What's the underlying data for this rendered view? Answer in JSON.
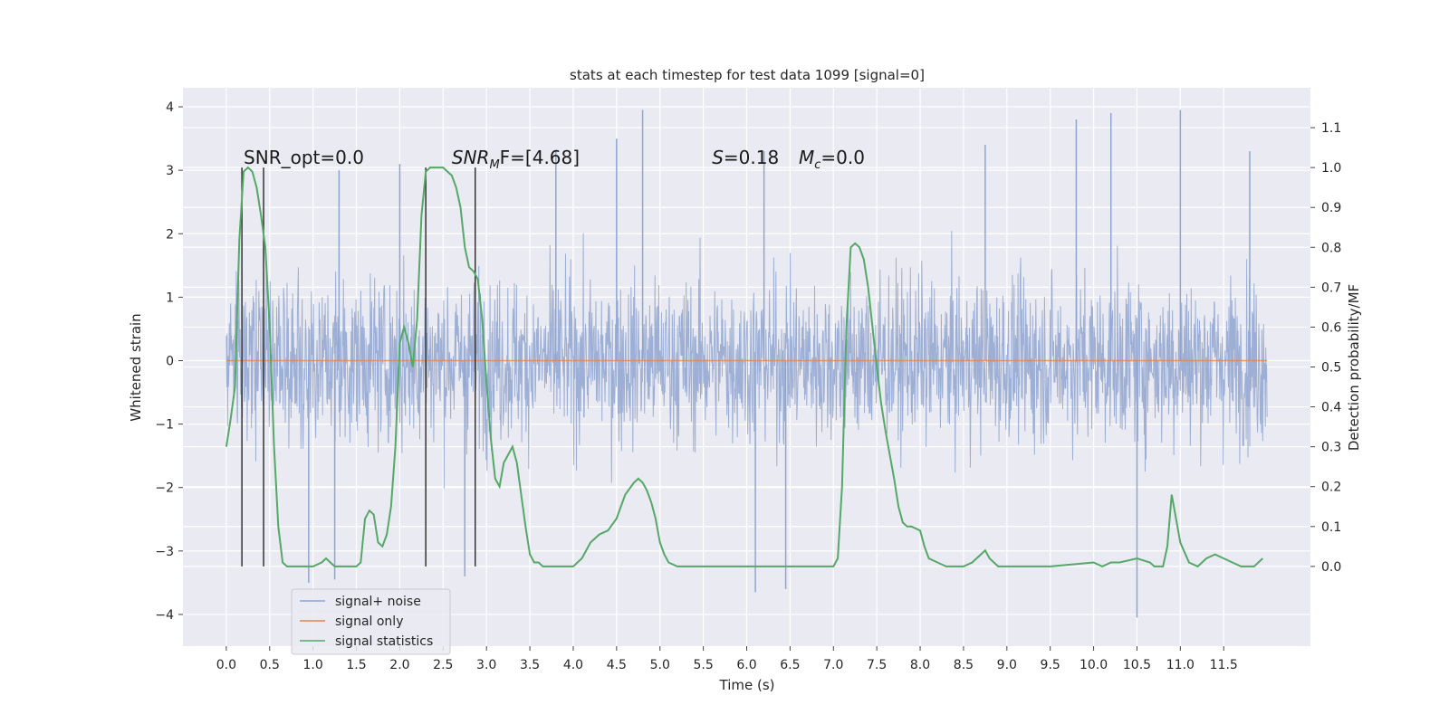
{
  "chart_data": {
    "type": "line",
    "title": "stats at each timestep for test data 1099 [signal=0]",
    "xlabel": "Time (s)",
    "ylabel": "Whitened strain",
    "ylabel_right": "Detection probability/MF",
    "xlim": [
      -0.5,
      12.5
    ],
    "ylim": [
      -4.5,
      4.3
    ],
    "ylim_right": [
      -0.2,
      1.2
    ],
    "x_ticks": [
      0.0,
      0.5,
      1.0,
      1.5,
      2.0,
      2.5,
      3.0,
      3.5,
      4.0,
      4.5,
      5.0,
      5.5,
      6.0,
      6.5,
      7.0,
      7.5,
      8.0,
      8.5,
      9.0,
      9.5,
      10.0,
      10.5,
      11.0,
      11.5
    ],
    "x_tick_labels": [
      "0.0",
      "0.5",
      "1.0",
      "1.5",
      "2.0",
      "2.5",
      "3.0",
      "3.5",
      "4.0",
      "4.5",
      "5.0",
      "5.5",
      "6.0",
      "6.5",
      "7.0",
      "7.5",
      "8.0",
      "8.5",
      "9.0",
      "9.5",
      "10.0",
      "10.5",
      "11.0",
      "11.5"
    ],
    "y_ticks": [
      -4,
      -3,
      -2,
      -1,
      0,
      1,
      2,
      3,
      4
    ],
    "y_tick_labels": [
      "−4",
      "−3",
      "−2",
      "−1",
      "0",
      "1",
      "2",
      "3",
      "4"
    ],
    "y_right_ticks": [
      0.0,
      0.1,
      0.2,
      0.3,
      0.4,
      0.5,
      0.6,
      0.7,
      0.8,
      0.9,
      1.0,
      1.1
    ],
    "y_right_tick_labels": [
      "0.0",
      "0.1",
      "0.2",
      "0.3",
      "0.4",
      "0.5",
      "0.6",
      "0.7",
      "0.8",
      "0.9",
      "1.0",
      "1.1"
    ],
    "grid": true,
    "legend_position": "lower-left",
    "annotations": [
      {
        "text": "SNR_opt=0.0",
        "x": 0.2,
        "y": 3.1
      },
      {
        "base": "SNR",
        "sub": "M",
        "rest": "F=[4.68]",
        "x": 2.6,
        "y": 3.1
      },
      {
        "base": "S",
        "rest": "=0.18",
        "x": 5.6,
        "y": 3.1
      },
      {
        "base": "M",
        "sub": "c",
        "rest": "=0.0",
        "x": 6.6,
        "y": 3.1
      }
    ],
    "vertical_lines": {
      "x": [
        0.18,
        0.43,
        2.3,
        2.87
      ],
      "y_range_right": [
        0.0,
        1.0
      ],
      "color": "#333333"
    },
    "series": [
      {
        "name": "signal+ noise",
        "color": "#8fa5d0",
        "axis": "left",
        "x_range": [
          0.0,
          12.0
        ],
        "envelope_upper_typical": 2.2,
        "envelope_lower_typical": -2.2,
        "peaks": [
          [
            4.8,
            3.95
          ],
          [
            11.0,
            3.95
          ],
          [
            10.5,
            -4.05
          ],
          [
            0.95,
            -3.5
          ],
          [
            6.45,
            -3.6
          ],
          [
            6.1,
            -3.65
          ],
          [
            2.75,
            -3.4
          ],
          [
            1.25,
            -3.45
          ],
          [
            9.8,
            3.8
          ],
          [
            10.2,
            3.9
          ],
          [
            1.3,
            3.0
          ],
          [
            3.8,
            3.3
          ],
          [
            6.2,
            3.3
          ],
          [
            8.75,
            3.4
          ],
          [
            11.8,
            3.3
          ],
          [
            2.0,
            3.1
          ],
          [
            4.5,
            3.5
          ]
        ]
      },
      {
        "name": "signal only",
        "color": "#dd8452",
        "axis": "left",
        "x": [
          0.0,
          12.0
        ],
        "y": [
          0.0,
          0.0
        ]
      },
      {
        "name": "signal statistics",
        "color": "#55a868",
        "axis": "right",
        "x": [
          0.0,
          0.05,
          0.1,
          0.15,
          0.2,
          0.25,
          0.3,
          0.35,
          0.4,
          0.45,
          0.5,
          0.55,
          0.6,
          0.65,
          0.7,
          0.8,
          0.9,
          1.0,
          1.1,
          1.15,
          1.2,
          1.25,
          1.3,
          1.35,
          1.4,
          1.45,
          1.5,
          1.55,
          1.6,
          1.65,
          1.7,
          1.75,
          1.8,
          1.85,
          1.9,
          1.95,
          2.0,
          2.05,
          2.1,
          2.15,
          2.2,
          2.25,
          2.3,
          2.35,
          2.4,
          2.45,
          2.5,
          2.55,
          2.6,
          2.65,
          2.7,
          2.75,
          2.8,
          2.85,
          2.9,
          2.95,
          3.0,
          3.05,
          3.1,
          3.15,
          3.2,
          3.25,
          3.3,
          3.35,
          3.4,
          3.45,
          3.5,
          3.55,
          3.6,
          3.65,
          3.7,
          3.75,
          3.8,
          3.9,
          4.0,
          4.1,
          4.2,
          4.3,
          4.4,
          4.5,
          4.6,
          4.7,
          4.75,
          4.8,
          4.85,
          4.9,
          4.95,
          5.0,
          5.05,
          5.1,
          5.2,
          5.3,
          5.5,
          6.0,
          6.3,
          6.5,
          6.7,
          6.9,
          7.0,
          7.05,
          7.1,
          7.15,
          7.2,
          7.25,
          7.3,
          7.35,
          7.4,
          7.45,
          7.5,
          7.55,
          7.6,
          7.65,
          7.7,
          7.75,
          7.8,
          7.85,
          7.9,
          8.0,
          8.05,
          8.1,
          8.2,
          8.3,
          8.4,
          8.5,
          8.6,
          8.7,
          8.75,
          8.8,
          8.9,
          9.0,
          9.5,
          10.0,
          10.1,
          10.2,
          10.3,
          10.5,
          10.65,
          10.7,
          10.75,
          10.8,
          10.85,
          10.9,
          11.0,
          11.1,
          11.2,
          11.25,
          11.3,
          11.4,
          11.5,
          11.6,
          11.7,
          11.8,
          11.85,
          11.9,
          11.95
        ],
        "y": [
          0.3,
          0.37,
          0.45,
          0.82,
          0.99,
          1.0,
          0.99,
          0.95,
          0.88,
          0.8,
          0.6,
          0.3,
          0.1,
          0.01,
          0.0,
          0.0,
          0.0,
          0.0,
          0.01,
          0.02,
          0.01,
          0.0,
          0.0,
          0.0,
          0.0,
          0.0,
          0.0,
          0.01,
          0.12,
          0.14,
          0.13,
          0.06,
          0.05,
          0.08,
          0.15,
          0.3,
          0.56,
          0.6,
          0.56,
          0.5,
          0.62,
          0.88,
          0.99,
          1.0,
          1.0,
          1.0,
          1.0,
          0.99,
          0.98,
          0.95,
          0.9,
          0.8,
          0.75,
          0.74,
          0.72,
          0.62,
          0.46,
          0.32,
          0.22,
          0.2,
          0.26,
          0.28,
          0.3,
          0.26,
          0.18,
          0.1,
          0.03,
          0.01,
          0.01,
          0.0,
          0.0,
          0.0,
          0.0,
          0.0,
          0.0,
          0.02,
          0.06,
          0.08,
          0.09,
          0.12,
          0.18,
          0.21,
          0.22,
          0.21,
          0.19,
          0.16,
          0.12,
          0.06,
          0.03,
          0.01,
          0.0,
          0.0,
          0.0,
          0.0,
          0.0,
          0.0,
          0.0,
          0.0,
          0.0,
          0.02,
          0.2,
          0.6,
          0.8,
          0.81,
          0.8,
          0.77,
          0.7,
          0.6,
          0.5,
          0.41,
          0.34,
          0.28,
          0.22,
          0.15,
          0.11,
          0.1,
          0.1,
          0.09,
          0.05,
          0.02,
          0.01,
          0.0,
          0.0,
          0.0,
          0.01,
          0.03,
          0.04,
          0.02,
          0.0,
          0.0,
          0.0,
          0.01,
          0.0,
          0.01,
          0.01,
          0.02,
          0.01,
          0.0,
          0.0,
          0.0,
          0.05,
          0.18,
          0.06,
          0.01,
          0.0,
          0.01,
          0.02,
          0.03,
          0.02,
          0.01,
          0.0,
          0.0,
          0.0,
          0.01,
          0.02
        ]
      }
    ]
  }
}
